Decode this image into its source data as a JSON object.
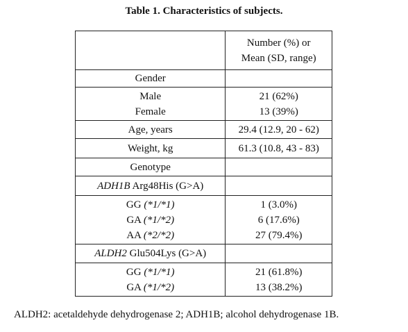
{
  "title": "Table 1. Characteristics of subjects.",
  "table": {
    "header": [
      "Number (%) or",
      "Mean (SD, range)"
    ],
    "gender": {
      "label": "Gender",
      "rows": [
        [
          "Male",
          "21 (62%)"
        ],
        [
          "Female",
          "13 (39%)"
        ]
      ]
    },
    "age": [
      "Age, years",
      "29.4 (12.9, 20 - 62)"
    ],
    "weight": [
      "Weight, kg",
      "61.3 (10.8, 43 - 83)"
    ],
    "genotype": "Genotype",
    "adh1b": {
      "gene": "ADH1B",
      "variant": "Arg48His (G>A)",
      "rows": [
        {
          "genotype": "GG",
          "alleles": "(*1/*1)",
          "value": "1 (3.0%)"
        },
        {
          "genotype": "GA",
          "alleles": "(*1/*2)",
          "value": "6 (17.6%)"
        },
        {
          "genotype": "AA",
          "alleles": "(*2/*2)",
          "value": "27 (79.4%)"
        }
      ]
    },
    "aldh2": {
      "gene": "ALDH2",
      "variant": "Glu504Lys (G>A)",
      "rows": [
        {
          "genotype": "GG",
          "alleles": "(*1/*1)",
          "value": "21 (61.8%)"
        },
        {
          "genotype": "GA",
          "alleles": "(*1/*2)",
          "value": "13 (38.2%)"
        }
      ]
    }
  },
  "footnote": "ALDH2: acetaldehyde dehydrogenase 2; ADH1B; alcohol dehydrogenase 1B."
}
